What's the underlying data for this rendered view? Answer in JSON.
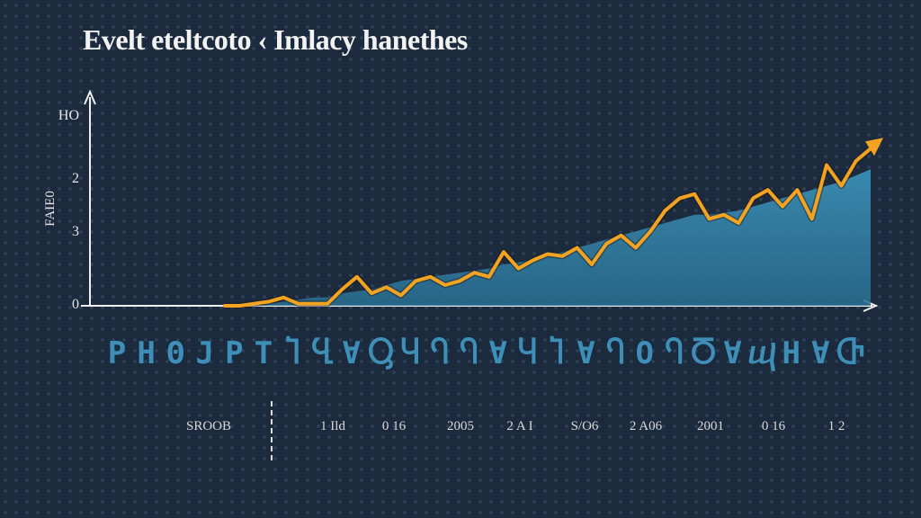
{
  "title": "Evelt eteltcoto ‹ Imlacy hanethes",
  "chart_data": {
    "type": "area",
    "ylabel": "FAIE0",
    "y_ticks": [
      "HO",
      "2",
      "3",
      "0"
    ],
    "x_symbols": [
      "P",
      "H",
      "Θ",
      "J",
      "P",
      "T",
      "Ⴈ",
      "Ⴁ",
      "Ɐ",
      "Ⴓ",
      "Ⴗ",
      "Ⴄ",
      "Ⴄ",
      "Ɐ",
      "Ⴗ",
      "Ⴈ",
      "Ɐ",
      "Ⴄ",
      "O",
      "Ⴄ",
      "Ⴃ",
      "Ɐ",
      "ⴓ",
      "H",
      "Ɐ",
      "Ⴇ"
    ],
    "x_years": [
      "SROOB",
      "1 Ild",
      "0 16",
      "2005",
      "2 A I",
      "S/O6",
      "2 A06",
      "2001",
      "0 16",
      "1 2"
    ],
    "ylim": [
      0,
      100
    ],
    "x": [
      0,
      1,
      2,
      3,
      4,
      5,
      6,
      7,
      8,
      9,
      10,
      11,
      12,
      13,
      14,
      15,
      16,
      17,
      18,
      19,
      20,
      21,
      22,
      23,
      24,
      25,
      26,
      27,
      28,
      29,
      30,
      31,
      32,
      33,
      34,
      35,
      36,
      37,
      38,
      39,
      40,
      41,
      42,
      43,
      44
    ],
    "series": [
      {
        "values": [
          0,
          0,
          1,
          2,
          4,
          1,
          1,
          1,
          8,
          14,
          6,
          9,
          5,
          12,
          14,
          10,
          12,
          16,
          14,
          26,
          18,
          22,
          25,
          24,
          28,
          20,
          30,
          34,
          28,
          36,
          46,
          52,
          54,
          42,
          44,
          40,
          52,
          56,
          48,
          56,
          42,
          68,
          58,
          70,
          76
        ],
        "color": "#f3a31f"
      },
      {
        "values": [
          0,
          0,
          0,
          1,
          2,
          3,
          4,
          4,
          6,
          7,
          8,
          10,
          12,
          13,
          14,
          15,
          16,
          17,
          18,
          20,
          21,
          22,
          24,
          26,
          28,
          30,
          32,
          34,
          36,
          38,
          40,
          42,
          44,
          44,
          45,
          46,
          48,
          50,
          52,
          54,
          56,
          58,
          60,
          63,
          66
        ],
        "color": "#3b8fb6"
      }
    ]
  }
}
